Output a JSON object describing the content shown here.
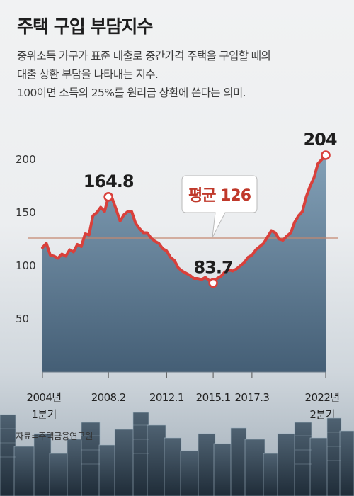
{
  "header": {
    "title": "주택 구입 부담지수",
    "description": [
      "중위소득 가구가 표준 대출로 중간가격 주택을 구입할 때의",
      "대출 상환 부담을 나타내는 지수.",
      "100이면 소득의 25%를 원리금 상환에 쓴다는 의미."
    ]
  },
  "source": "자료=주택금융연구원",
  "colors": {
    "line": "#d9403b",
    "area_top": "#7d9cb4",
    "area_bottom": "#3d5870",
    "average_line": "#c48870",
    "callout_text": "#c0392b"
  },
  "chart_data": {
    "type": "area",
    "title": "주택 구입 부담지수",
    "ylim": [
      0,
      210
    ],
    "y_ticks": [
      50,
      100,
      150,
      200
    ],
    "x_start": 2004.0,
    "x_end": 2022.25,
    "x_ticks": [
      {
        "x": 2004.0,
        "lines": [
          "2004년",
          "1분기"
        ]
      },
      {
        "x": 2008.25,
        "lines": [
          "2008.2"
        ]
      },
      {
        "x": 2012.0,
        "lines": [
          "2012.1"
        ]
      },
      {
        "x": 2015.0,
        "lines": [
          "2015.1"
        ]
      },
      {
        "x": 2017.5,
        "lines": [
          "2017.3"
        ]
      },
      {
        "x": 2022.25,
        "lines": [
          "2022년",
          "2분기"
        ]
      }
    ],
    "average": {
      "value": 126,
      "label": "평균 126"
    },
    "annotations": [
      {
        "x": 2008.25,
        "y": 164.8,
        "label": "164.8"
      },
      {
        "x": 2015.0,
        "y": 83.7,
        "label": "83.7"
      },
      {
        "x": 2022.25,
        "y": 204,
        "label": "204"
      }
    ],
    "series": [
      {
        "x": [
          2004.0,
          2004.25,
          2004.5,
          2004.75,
          2005.0,
          2005.25,
          2005.5,
          2005.75,
          2006.0,
          2006.25,
          2006.5,
          2006.75,
          2007.0,
          2007.25,
          2007.5,
          2007.75,
          2008.0,
          2008.25,
          2008.5,
          2008.75,
          2009.0,
          2009.25,
          2009.5,
          2009.75,
          2010.0,
          2010.25,
          2010.5,
          2010.75,
          2011.0,
          2011.25,
          2011.5,
          2011.75,
          2012.0,
          2012.25,
          2012.5,
          2012.75,
          2013.0,
          2013.25,
          2013.5,
          2013.75,
          2014.0,
          2014.25,
          2014.5,
          2014.75,
          2015.0,
          2015.25,
          2015.5,
          2015.75,
          2016.0,
          2016.25,
          2016.5,
          2016.75,
          2017.0,
          2017.25,
          2017.5,
          2017.75,
          2018.0,
          2018.25,
          2018.5,
          2018.75,
          2019.0,
          2019.25,
          2019.5,
          2019.75,
          2020.0,
          2020.25,
          2020.5,
          2020.75,
          2021.0,
          2021.25,
          2021.5,
          2021.75,
          2022.0,
          2022.25
        ],
        "values": [
          117,
          121,
          110,
          109,
          107,
          111,
          109,
          115,
          113,
          120,
          118,
          130,
          129,
          147,
          150,
          155,
          151,
          164.8,
          163,
          153,
          142,
          148,
          151,
          151,
          140,
          135,
          131,
          131,
          126,
          123,
          121,
          116,
          114,
          108,
          105,
          98,
          95,
          93,
          91,
          88,
          88,
          87,
          89,
          86,
          83.7,
          88,
          90,
          94,
          96,
          95,
          97,
          100,
          103,
          108,
          110,
          115,
          118,
          121,
          127,
          133,
          131,
          125,
          124,
          128,
          131,
          141,
          147,
          151,
          165,
          175,
          183,
          196,
          200,
          204
        ]
      }
    ]
  }
}
